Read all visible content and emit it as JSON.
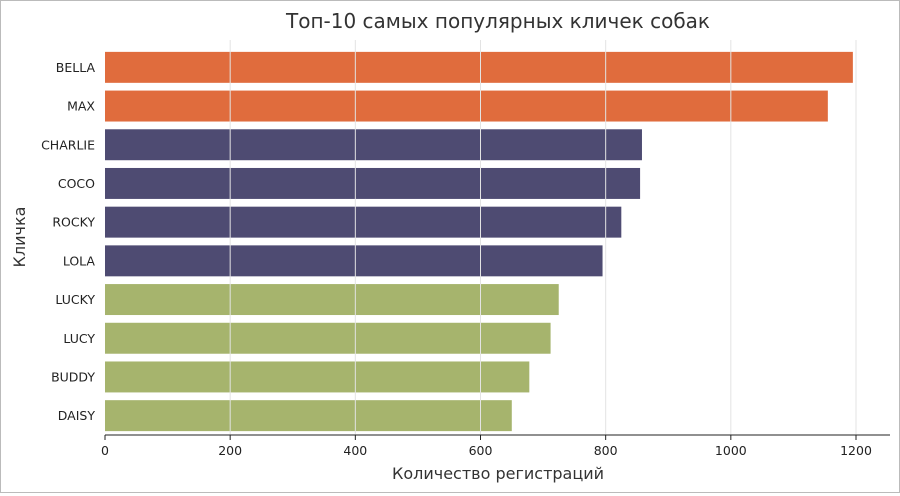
{
  "chart_data": {
    "type": "bar",
    "orientation": "horizontal",
    "title": "Топ-10 самых популярных кличек собак",
    "xlabel": "Количество регистраций",
    "ylabel": "Кличка",
    "categories": [
      "BELLA",
      "MAX",
      "CHARLIE",
      "COCO",
      "ROCKY",
      "LOLA",
      "LUCKY",
      "LUCY",
      "BUDDY",
      "DAISY"
    ],
    "values": [
      1195,
      1155,
      858,
      855,
      825,
      795,
      725,
      712,
      678,
      650
    ],
    "bar_colors": [
      "#e06c3d",
      "#e06c3d",
      "#4e4b72",
      "#4e4b72",
      "#4e4b72",
      "#4e4b72",
      "#a6b46d",
      "#a6b46d",
      "#a6b46d",
      "#a6b46d"
    ],
    "xlim": [
      0,
      1250
    ],
    "xticks": [
      0,
      200,
      400,
      600,
      800,
      1000,
      1200
    ],
    "grid": "vertical",
    "legend": "none"
  }
}
